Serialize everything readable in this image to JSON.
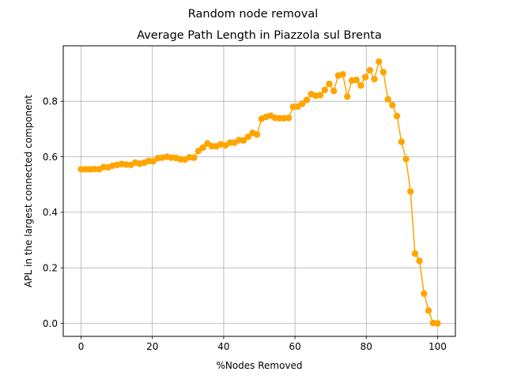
{
  "figure": {
    "suptitle": "Random node removal"
  },
  "chart_data": {
    "type": "line",
    "title": "Average Path Length in Piazzola sul Brenta",
    "xlabel": "%Nodes Removed",
    "ylabel": "APL in the largest connected component",
    "xlim": [
      -5,
      105
    ],
    "ylim": [
      -0.047,
      1.0
    ],
    "xticks": [
      0,
      20,
      40,
      60,
      80,
      100
    ],
    "yticks": [
      0.0,
      0.2,
      0.4,
      0.6,
      0.8
    ],
    "xtick_labels": [
      "0",
      "20",
      "40",
      "60",
      "80",
      100
    ],
    "ytick_labels": [
      "0.0",
      "0.2",
      "0.4",
      "0.6",
      "0.8"
    ],
    "grid": true,
    "legend": null,
    "colors": {
      "series": "#ffa500",
      "grid": "#b0b0b0",
      "axes": "#000000"
    },
    "series": [
      {
        "marker": "circle",
        "x": [
          0,
          1.27,
          2.53,
          3.8,
          5.06,
          6.33,
          7.59,
          8.86,
          10.13,
          11.39,
          12.66,
          13.92,
          15.19,
          16.46,
          17.72,
          18.99,
          20.25,
          21.52,
          22.78,
          24.05,
          25.32,
          26.58,
          27.85,
          29.11,
          30.38,
          31.65,
          32.91,
          34.18,
          35.44,
          36.71,
          37.97,
          39.24,
          40.51,
          41.77,
          43.04,
          44.3,
          45.57,
          46.84,
          48.1,
          49.37,
          50.63,
          51.9,
          53.16,
          54.43,
          55.7,
          56.96,
          58.23,
          59.49,
          60.76,
          62.03,
          63.29,
          64.56,
          65.82,
          67.09,
          68.35,
          69.62,
          70.89,
          72.15,
          73.42,
          74.68,
          75.95,
          77.22,
          78.48,
          79.75,
          81.01,
          82.28,
          83.54,
          84.81,
          86.08,
          87.34,
          88.61,
          89.87,
          91.14,
          92.41,
          93.67,
          94.94,
          96.2,
          97.47,
          98.73,
          100
        ],
        "y": [
          0.555,
          0.555,
          0.555,
          0.556,
          0.555,
          0.563,
          0.562,
          0.568,
          0.571,
          0.574,
          0.572,
          0.571,
          0.579,
          0.575,
          0.579,
          0.585,
          0.584,
          0.595,
          0.597,
          0.6,
          0.597,
          0.596,
          0.591,
          0.59,
          0.598,
          0.597,
          0.621,
          0.633,
          0.648,
          0.638,
          0.638,
          0.645,
          0.641,
          0.651,
          0.651,
          0.66,
          0.659,
          0.672,
          0.686,
          0.68,
          0.737,
          0.744,
          0.748,
          0.74,
          0.739,
          0.739,
          0.74,
          0.78,
          0.781,
          0.791,
          0.805,
          0.826,
          0.82,
          0.822,
          0.841,
          0.863,
          0.837,
          0.893,
          0.897,
          0.817,
          0.875,
          0.877,
          0.857,
          0.887,
          0.912,
          0.88,
          0.943,
          0.905,
          0.807,
          0.786,
          0.747,
          0.654,
          0.592,
          0.475,
          0.251,
          0.225,
          0.107,
          0.046,
          0.001,
          0.0
        ]
      }
    ]
  }
}
